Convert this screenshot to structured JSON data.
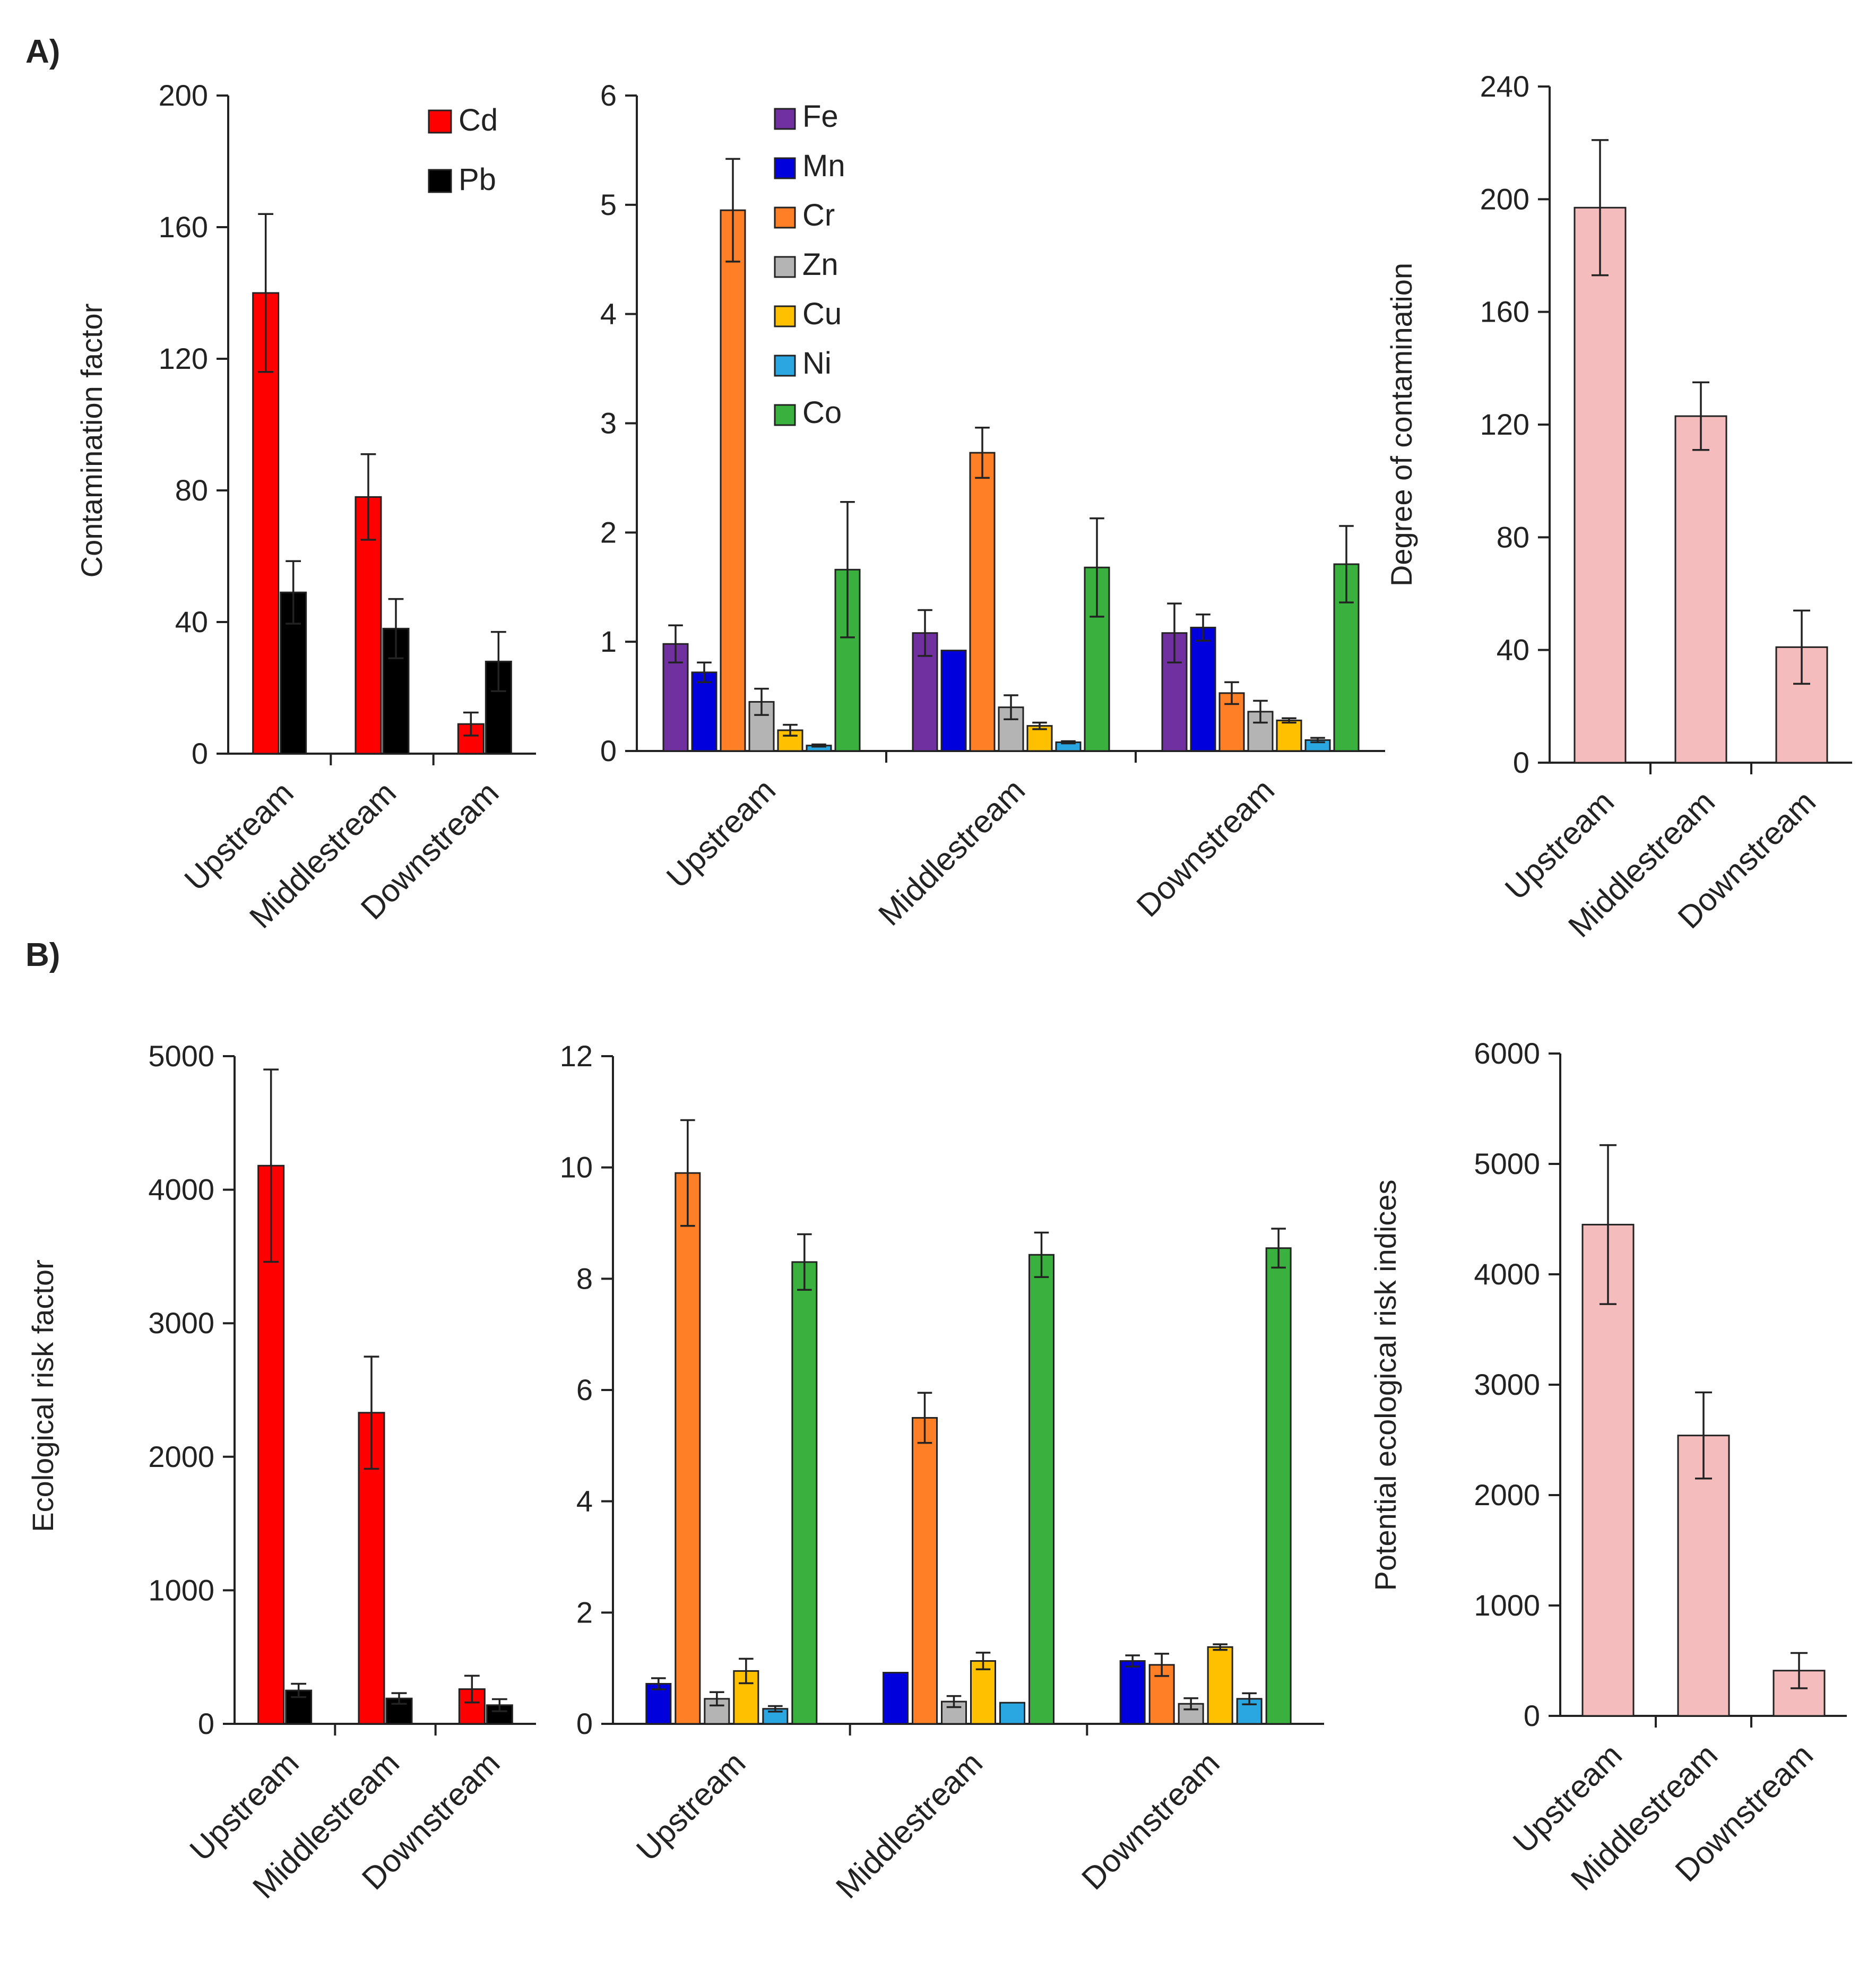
{
  "figure": {
    "panel_labels": [
      "A)",
      "B)"
    ]
  },
  "chart_data": [
    {
      "id": "a1",
      "type": "bar",
      "title": "",
      "ylabel": "Contamination factor",
      "xlabel": "",
      "ylim": [
        0,
        200
      ],
      "yticks": [
        0,
        40,
        80,
        120,
        160,
        200
      ],
      "categories": [
        "Upstream",
        "Middlestream",
        "Downstream"
      ],
      "legend_position": "top-right",
      "series": [
        {
          "name": "Cd",
          "color": "#ff0000",
          "values": [
            140,
            78,
            9
          ],
          "errors": [
            24,
            13,
            3.5
          ]
        },
        {
          "name": "Pb",
          "color": "#000000",
          "values": [
            49,
            38,
            28
          ],
          "errors": [
            9.5,
            9,
            9
          ]
        }
      ]
    },
    {
      "id": "a2",
      "type": "bar",
      "title": "",
      "ylabel": "",
      "xlabel": "",
      "ylim": [
        0,
        6
      ],
      "yticks": [
        0,
        1,
        2,
        3,
        4,
        5,
        6
      ],
      "categories": [
        "Upstream",
        "Middlestream",
        "Downstream"
      ],
      "legend_position": "top-left",
      "series": [
        {
          "name": "Fe",
          "color": "#7030a0",
          "values": [
            0.98,
            1.08,
            1.08
          ],
          "errors": [
            0.17,
            0.21,
            0.27
          ]
        },
        {
          "name": "Mn",
          "color": "#0000dd",
          "values": [
            0.72,
            0.92,
            1.13
          ],
          "errors": [
            0.09,
            0.0,
            0.12
          ]
        },
        {
          "name": "Cr",
          "color": "#ff7f27",
          "values": [
            4.95,
            2.73,
            0.53
          ],
          "errors": [
            0.47,
            0.23,
            0.1
          ]
        },
        {
          "name": "Zn",
          "color": "#b4b4b4",
          "values": [
            0.45,
            0.4,
            0.36
          ],
          "errors": [
            0.12,
            0.11,
            0.1
          ]
        },
        {
          "name": "Cu",
          "color": "#ffc000",
          "values": [
            0.19,
            0.23,
            0.28
          ],
          "errors": [
            0.05,
            0.03,
            0.02
          ]
        },
        {
          "name": "Ni",
          "color": "#2aa6e0",
          "values": [
            0.05,
            0.08,
            0.1
          ],
          "errors": [
            0.01,
            0.01,
            0.02
          ]
        },
        {
          "name": "Co",
          "color": "#3ab03e",
          "values": [
            1.66,
            1.68,
            1.71
          ],
          "errors": [
            0.62,
            0.45,
            0.35
          ]
        }
      ]
    },
    {
      "id": "a3",
      "type": "bar",
      "title": "",
      "ylabel": "Degree of contamination",
      "xlabel": "",
      "ylim": [
        0,
        240
      ],
      "yticks": [
        0,
        40,
        80,
        120,
        160,
        200,
        240
      ],
      "categories": [
        "Upstream",
        "Middlestream",
        "Downstream"
      ],
      "series": [
        {
          "name": "Degree of contamination",
          "color": "#f4bcbc",
          "values": [
            197,
            123,
            41
          ],
          "errors": [
            24,
            12,
            13
          ]
        }
      ]
    },
    {
      "id": "b1",
      "type": "bar",
      "title": "",
      "ylabel": "Ecological risk factor",
      "xlabel": "",
      "ylim": [
        0,
        5000
      ],
      "yticks": [
        0,
        1000,
        2000,
        3000,
        4000,
        5000
      ],
      "categories": [
        "Upstream",
        "Middlestream",
        "Downstream"
      ],
      "series": [
        {
          "name": "Cd",
          "color": "#ff0000",
          "values": [
            4180,
            2330,
            260
          ],
          "errors": [
            720,
            420,
            100
          ]
        },
        {
          "name": "Pb",
          "color": "#000000",
          "values": [
            250,
            190,
            140
          ],
          "errors": [
            50,
            40,
            45
          ]
        }
      ]
    },
    {
      "id": "b2",
      "type": "bar",
      "title": "",
      "ylabel": "",
      "xlabel": "",
      "ylim": [
        0,
        12
      ],
      "yticks": [
        0,
        2,
        4,
        6,
        8,
        10,
        12
      ],
      "categories": [
        "Upstream",
        "Middlestream",
        "Downstream"
      ],
      "series": [
        {
          "name": "Mn",
          "color": "#0000dd",
          "values": [
            0.72,
            0.92,
            1.13
          ],
          "errors": [
            0.1,
            0.0,
            0.1
          ]
        },
        {
          "name": "Cr",
          "color": "#ff7f27",
          "values": [
            9.9,
            5.5,
            1.06
          ],
          "errors": [
            0.95,
            0.45,
            0.2
          ]
        },
        {
          "name": "Zn",
          "color": "#b4b4b4",
          "values": [
            0.45,
            0.4,
            0.36
          ],
          "errors": [
            0.12,
            0.1,
            0.1
          ]
        },
        {
          "name": "Cu",
          "color": "#ffc000",
          "values": [
            0.95,
            1.13,
            1.38
          ],
          "errors": [
            0.22,
            0.15,
            0.05
          ]
        },
        {
          "name": "Ni",
          "color": "#2aa6e0",
          "values": [
            0.27,
            0.38,
            0.45
          ],
          "errors": [
            0.05,
            0.0,
            0.1
          ]
        },
        {
          "name": "Co",
          "color": "#3ab03e",
          "values": [
            8.3,
            8.43,
            8.55
          ],
          "errors": [
            0.5,
            0.4,
            0.35
          ]
        }
      ]
    },
    {
      "id": "b3",
      "type": "bar",
      "title": "",
      "ylabel": "Potential ecological risk indices",
      "xlabel": "",
      "ylim": [
        0,
        6000
      ],
      "yticks": [
        0,
        1000,
        2000,
        3000,
        4000,
        5000,
        6000
      ],
      "categories": [
        "Upstream",
        "Middlestream",
        "Downstream"
      ],
      "series": [
        {
          "name": "Potential ecological risk indices",
          "color": "#f4bcbc",
          "values": [
            4450,
            2540,
            410
          ],
          "errors": [
            720,
            390,
            160
          ]
        }
      ]
    }
  ]
}
